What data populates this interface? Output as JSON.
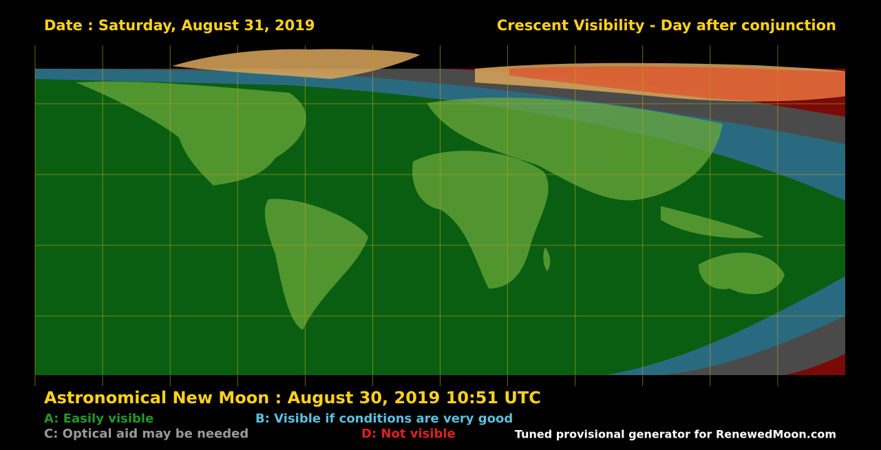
{
  "header": {
    "date": "Date : Saturday, August 31, 2019",
    "title": "Crescent Visibility - Day after conjunction"
  },
  "footer": {
    "new_moon": "Astronomical New Moon : August 30, 2019 10:51 UTC",
    "legend": {
      "a": "A: Easily visible",
      "b": "B: Visible if conditions are very good",
      "c": "C: Optical aid may be needed",
      "d": "D: Not visible"
    },
    "credit": "Tuned provisional generator for RenewedMoon.com"
  }
}
